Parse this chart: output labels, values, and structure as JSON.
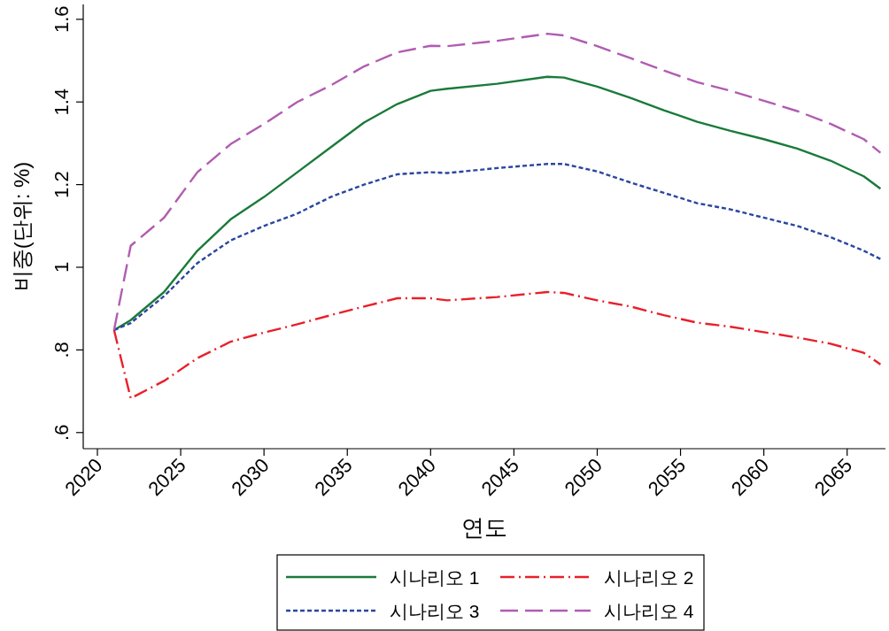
{
  "chart_data": {
    "type": "line",
    "xlabel": "연도",
    "ylabel": "비중(단위: %)",
    "xlim": [
      2019.15,
      2067.3
    ],
    "ylim": [
      0.561,
      1.636
    ],
    "xticks": [
      2020,
      2025,
      2030,
      2035,
      2040,
      2045,
      2050,
      2055,
      2060,
      2065
    ],
    "yticks": [
      {
        "value": 0.6,
        "label": ".6"
      },
      {
        "value": 0.8,
        "label": ".8"
      },
      {
        "value": 1,
        "label": "1"
      },
      1.2,
      1.4,
      1.6
    ],
    "x": [
      2021,
      2022,
      2024,
      2026,
      2028,
      2030,
      2032,
      2034,
      2036,
      2038,
      2040,
      2041,
      2044,
      2047,
      2048,
      2050,
      2052,
      2054,
      2056,
      2058,
      2060,
      2062,
      2064,
      2066,
      2067
    ],
    "grid": false,
    "legend": "bottom",
    "marker": "none",
    "series": [
      {
        "name": "시나리오 1",
        "color": "#1a7a3a",
        "line_style": "solid",
        "values": [
          0.848,
          0.872,
          0.94,
          1.04,
          1.116,
          1.17,
          1.23,
          1.29,
          1.35,
          1.395,
          1.427,
          1.432,
          1.444,
          1.461,
          1.459,
          1.437,
          1.41,
          1.38,
          1.352,
          1.33,
          1.31,
          1.287,
          1.258,
          1.22,
          1.19
        ]
      },
      {
        "name": "시나리오 2",
        "color": "#e8202a",
        "line_style": "dashdot",
        "values": [
          0.848,
          0.683,
          0.725,
          0.78,
          0.82,
          0.842,
          0.862,
          0.884,
          0.905,
          0.925,
          0.925,
          0.92,
          0.928,
          0.94,
          0.938,
          0.92,
          0.905,
          0.884,
          0.866,
          0.856,
          0.843,
          0.83,
          0.815,
          0.793,
          0.765
        ]
      },
      {
        "name": "시나리오 3",
        "color": "#2a46a0",
        "line_style": "dotted",
        "values": [
          0.848,
          0.865,
          0.93,
          1.01,
          1.065,
          1.1,
          1.13,
          1.17,
          1.2,
          1.225,
          1.23,
          1.228,
          1.24,
          1.25,
          1.25,
          1.232,
          1.205,
          1.18,
          1.155,
          1.14,
          1.12,
          1.1,
          1.073,
          1.04,
          1.02
        ]
      },
      {
        "name": "시나리오 4",
        "color": "#b05cb0",
        "line_style": "dashed",
        "values": [
          0.848,
          1.052,
          1.12,
          1.23,
          1.298,
          1.347,
          1.4,
          1.44,
          1.486,
          1.52,
          1.536,
          1.535,
          1.548,
          1.565,
          1.561,
          1.535,
          1.506,
          1.476,
          1.448,
          1.427,
          1.403,
          1.378,
          1.347,
          1.31,
          1.277
        ]
      }
    ]
  }
}
